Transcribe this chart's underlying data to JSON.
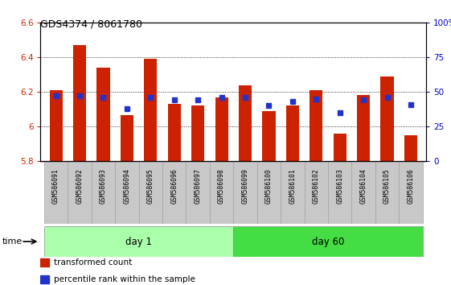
{
  "title": "GDS4374 / 8061780",
  "samples": [
    "GSM586091",
    "GSM586092",
    "GSM586093",
    "GSM586094",
    "GSM586095",
    "GSM586096",
    "GSM586097",
    "GSM586098",
    "GSM586099",
    "GSM586100",
    "GSM586101",
    "GSM586102",
    "GSM586103",
    "GSM586104",
    "GSM586105",
    "GSM586106"
  ],
  "transformed_count": [
    6.21,
    6.47,
    6.34,
    6.065,
    6.39,
    6.13,
    6.12,
    6.17,
    6.24,
    6.09,
    6.12,
    6.21,
    5.96,
    6.18,
    6.29,
    5.95
  ],
  "percentile_rank": [
    47,
    47,
    46,
    38,
    46,
    44,
    44,
    46,
    46,
    40,
    43,
    45,
    35,
    44,
    46,
    41
  ],
  "day1_count": 8,
  "day60_count": 8,
  "bar_color": "#cc2200",
  "dot_color": "#2233cc",
  "ylim_left": [
    5.8,
    6.6
  ],
  "ylim_right": [
    0,
    100
  ],
  "yticks_left": [
    5.8,
    6.0,
    6.2,
    6.4,
    6.6
  ],
  "yticks_right": [
    0,
    25,
    50,
    75,
    100
  ],
  "ytick_labels_right": [
    "0",
    "25",
    "50",
    "75",
    "100%"
  ],
  "bar_width": 0.55,
  "plot_bg": "#ffffff",
  "day1_color": "#aaffaa",
  "day60_color": "#44dd44",
  "xtick_bg": "#c8c8c8",
  "time_label": "time",
  "day1_label": "day 1",
  "day60_label": "day 60",
  "legend_red": "transformed count",
  "legend_blue": "percentile rank within the sample",
  "grid_lines": [
    6.0,
    6.2,
    6.4
  ]
}
